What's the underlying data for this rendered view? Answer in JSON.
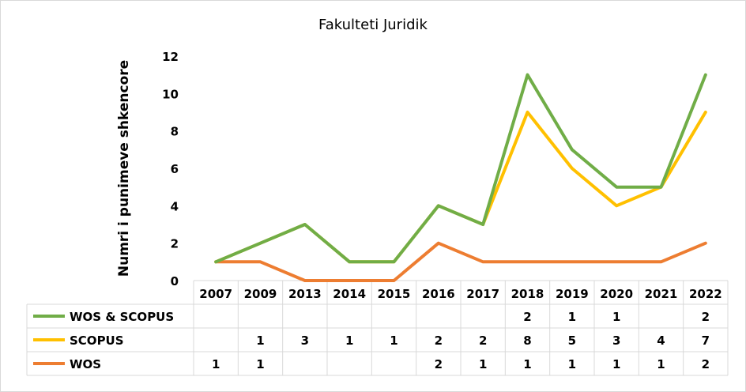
{
  "chart_data": {
    "type": "line",
    "title": "Fakulteti Juridik",
    "ylabel": "Numri i punimeve shkencore",
    "xlabel": "",
    "ylim": [
      0,
      12
    ],
    "yticks": [
      "0",
      "2",
      "4",
      "6",
      "8",
      "10",
      "12"
    ],
    "categories": [
      "2007",
      "2009",
      "2013",
      "2014",
      "2015",
      "2016",
      "2017",
      "2018",
      "2019",
      "2020",
      "2021",
      "2022"
    ],
    "grid": false,
    "legend": "data-table-left",
    "series": [
      {
        "name": "WOS & SCOPUS",
        "color": "#70ad47",
        "line_values": [
          1,
          2,
          3,
          1,
          1,
          4,
          3,
          11,
          7,
          5,
          5,
          11
        ],
        "table_values": [
          "",
          "",
          "",
          "",
          "",
          "",
          "",
          "2",
          "1",
          "1",
          "",
          "2"
        ]
      },
      {
        "name": "SCOPUS",
        "color": "#ffc000",
        "line_values": [
          1,
          2,
          3,
          1,
          1,
          4,
          3,
          9,
          6,
          4,
          5,
          9
        ],
        "table_values": [
          "",
          "1",
          "3",
          "1",
          "1",
          "2",
          "2",
          "8",
          "5",
          "3",
          "4",
          "7"
        ]
      },
      {
        "name": "WOS",
        "color": "#ed7d31",
        "line_values": [
          1,
          1,
          0,
          0,
          0,
          2,
          1,
          1,
          1,
          1,
          1,
          2
        ],
        "table_values": [
          "1",
          "1",
          "",
          "",
          "",
          "2",
          "1",
          "1",
          "1",
          "1",
          "1",
          "2"
        ]
      }
    ]
  }
}
